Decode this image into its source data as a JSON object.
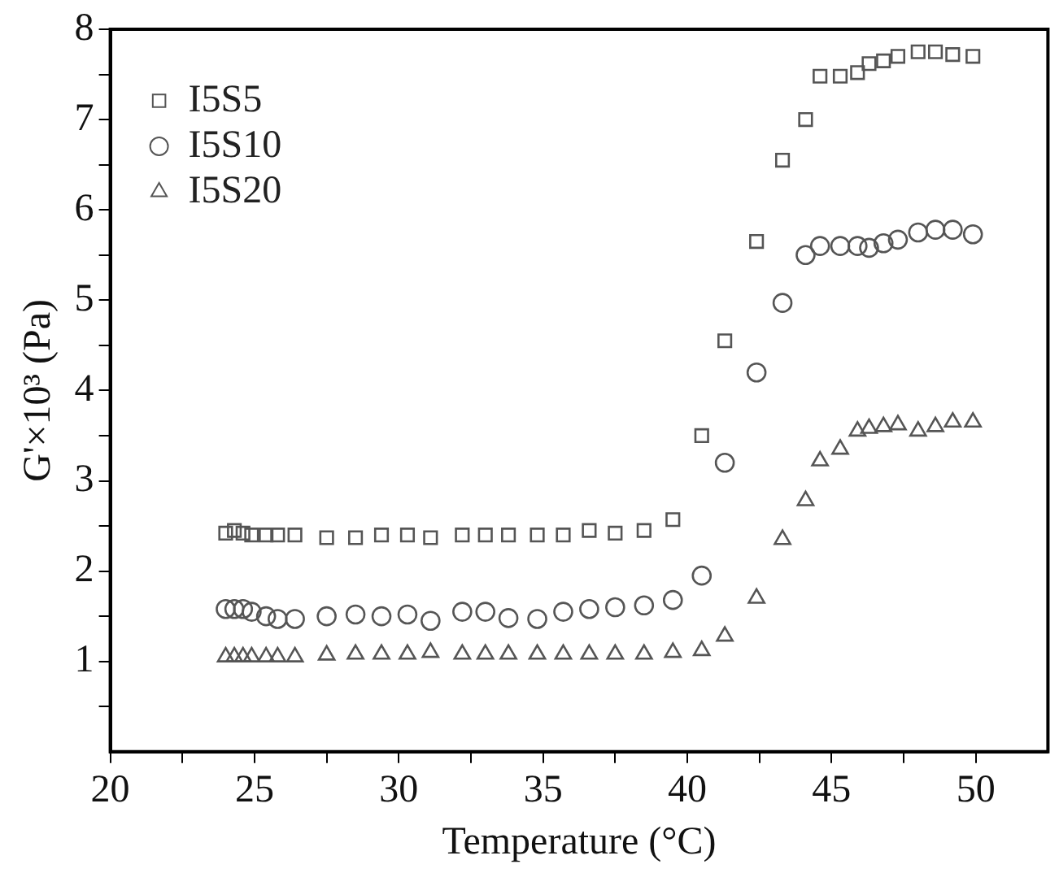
{
  "chart_data": {
    "type": "scatter",
    "xlabel": "Temperature (°C)",
    "ylabel": "G'×10³ (Pa)",
    "x": [
      24.0,
      24.3,
      24.6,
      24.9,
      25.4,
      25.8,
      26.4,
      27.5,
      28.5,
      29.4,
      30.3,
      31.1,
      32.2,
      33.0,
      33.8,
      34.8,
      35.7,
      36.6,
      37.5,
      38.5,
      39.5,
      40.5,
      41.3,
      42.4,
      43.3,
      44.1,
      44.6,
      45.3,
      45.9,
      46.3,
      46.8,
      47.3,
      48.0,
      48.6,
      49.2,
      49.9
    ],
    "series": [
      {
        "name": "I5S5",
        "color": "#555555",
        "marker": "square",
        "values": [
          2.42,
          2.45,
          2.42,
          2.4,
          2.4,
          2.4,
          2.4,
          2.37,
          2.37,
          2.4,
          2.4,
          2.37,
          2.4,
          2.4,
          2.4,
          2.4,
          2.4,
          2.45,
          2.42,
          2.45,
          2.57,
          3.5,
          4.55,
          5.65,
          6.55,
          7.0,
          7.48,
          7.48,
          7.52,
          7.62,
          7.65,
          7.7,
          7.75,
          7.75,
          7.72,
          7.7
        ]
      },
      {
        "name": "I5S10",
        "color": "#555555",
        "marker": "circle",
        "values": [
          1.58,
          1.58,
          1.58,
          1.55,
          1.5,
          1.47,
          1.47,
          1.5,
          1.52,
          1.5,
          1.52,
          1.45,
          1.55,
          1.55,
          1.48,
          1.47,
          1.55,
          1.58,
          1.6,
          1.62,
          1.68,
          1.95,
          3.2,
          4.2,
          4.97,
          5.5,
          5.6,
          5.6,
          5.6,
          5.58,
          5.63,
          5.67,
          5.75,
          5.78,
          5.78,
          5.73
        ]
      },
      {
        "name": "I5S20",
        "color": "#555555",
        "marker": "triangle",
        "values": [
          1.05,
          1.05,
          1.05,
          1.05,
          1.05,
          1.05,
          1.05,
          1.07,
          1.08,
          1.08,
          1.08,
          1.1,
          1.08,
          1.08,
          1.08,
          1.08,
          1.08,
          1.08,
          1.08,
          1.08,
          1.1,
          1.12,
          1.28,
          1.7,
          2.35,
          2.78,
          3.22,
          3.35,
          3.55,
          3.58,
          3.6,
          3.62,
          3.55,
          3.6,
          3.65,
          3.65
        ]
      }
    ],
    "xlim": [
      20,
      52.5
    ],
    "xticks": [
      20,
      {
        "value": 22.5,
        "label": null
      },
      25,
      {
        "value": 27.5,
        "label": null
      },
      30,
      {
        "value": 32.5,
        "label": null
      },
      35,
      {
        "value": 37.5,
        "label": null
      },
      40,
      {
        "value": 42.5,
        "label": null
      },
      45,
      {
        "value": 47.5,
        "label": null
      },
      50
    ],
    "ylim": [
      0,
      8
    ],
    "yticks": [
      {
        "value": 0.5,
        "label": null
      },
      1,
      {
        "value": 1.5,
        "label": null
      },
      2,
      {
        "value": 2.5,
        "label": null
      },
      3,
      {
        "value": 3.5,
        "label": null
      },
      4,
      {
        "value": 4.5,
        "label": null
      },
      5,
      {
        "value": 5.5,
        "label": null
      },
      6,
      {
        "value": 6.5,
        "label": null
      },
      7,
      {
        "value": 7.5,
        "label": null
      },
      8
    ],
    "grid": false,
    "legend": "top left"
  }
}
